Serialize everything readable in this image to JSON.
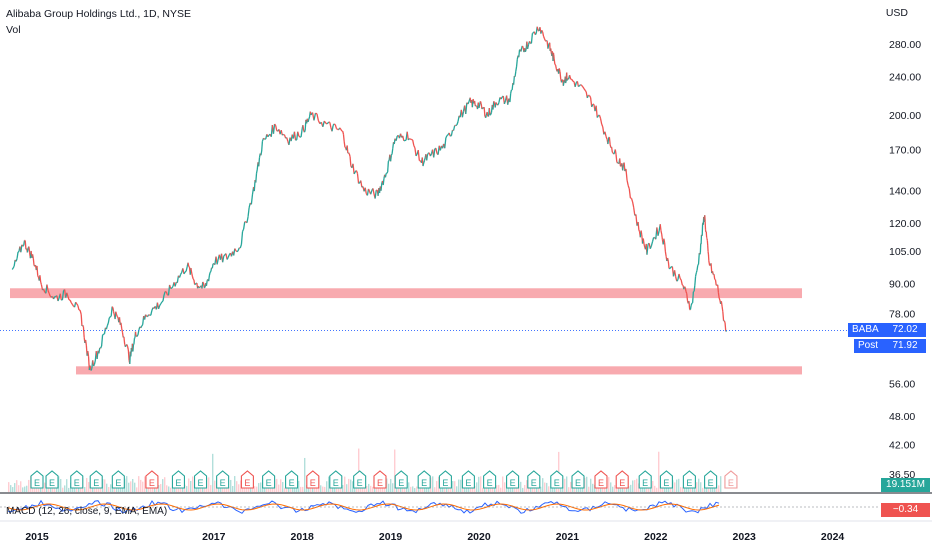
{
  "header": {
    "title": "Alibaba Group Holdings Ltd., 1D, NYSE",
    "volume_label": "Vol",
    "currency": "USD",
    "macd_label": "MACD (12, 26, close, 9, EMA, EMA)"
  },
  "tags": {
    "symbol": "BABA",
    "price": "72.02",
    "post_label": "Post",
    "post_price": "71.92",
    "volume": "19.151M",
    "macd_value": "−0.34"
  },
  "colors": {
    "up": "#26a69a",
    "down": "#ef5350",
    "zone": "#f7a1a6",
    "price_tag": "#2962ff",
    "macd_line": "#2962ff",
    "signal_line": "#ff6d00"
  },
  "chart_data": {
    "type": "line",
    "title": "Alibaba Group Holdings Ltd., 1D, NYSE",
    "ylim": [
      34,
      320
    ],
    "y_scale": "log",
    "y_ticks": [
      "280.00",
      "240.00",
      "200.00",
      "170.00",
      "140.00",
      "120.00",
      "105.00",
      "90.00",
      "78.00",
      "56.00",
      "48.00",
      "42.00",
      "36.50"
    ],
    "x_ticks": [
      "2015",
      "2016",
      "2017",
      "2018",
      "2019",
      "2020",
      "2021",
      "2022",
      "2023",
      "2024"
    ],
    "series": [
      {
        "name": "BABA",
        "x": [
          2014.72,
          2014.85,
          2014.95,
          2015.05,
          2015.2,
          2015.35,
          2015.5,
          2015.6,
          2015.72,
          2015.85,
          2015.95,
          2016.05,
          2016.12,
          2016.25,
          2016.4,
          2016.55,
          2016.7,
          2016.8,
          2016.9,
          2017.0,
          2017.15,
          2017.3,
          2017.45,
          2017.55,
          2017.7,
          2017.85,
          2018.0,
          2018.1,
          2018.3,
          2018.45,
          2018.55,
          2018.7,
          2018.85,
          2018.95,
          2019.05,
          2019.2,
          2019.35,
          2019.45,
          2019.6,
          2019.75,
          2019.9,
          2020.0,
          2020.1,
          2020.2,
          2020.35,
          2020.45,
          2020.55,
          2020.68,
          2020.8,
          2020.85,
          2020.95,
          2021.0,
          2021.15,
          2021.3,
          2021.45,
          2021.55,
          2021.65,
          2021.8,
          2021.9,
          2022.05,
          2022.15,
          2022.3,
          2022.4,
          2022.5,
          2022.55,
          2022.6,
          2022.7,
          2022.8
        ],
        "values": [
          95,
          110,
          102,
          90,
          84,
          86,
          77,
          60,
          67,
          80,
          74,
          63,
          71,
          78,
          82,
          90,
          98,
          90,
          88,
          100,
          102,
          108,
          140,
          175,
          190,
          178,
          185,
          200,
          190,
          185,
          160,
          140,
          137,
          152,
          178,
          182,
          160,
          165,
          172,
          195,
          212,
          210,
          200,
          214,
          215,
          265,
          280,
          305,
          275,
          260,
          235,
          240,
          228,
          210,
          180,
          165,
          155,
          118,
          105,
          118,
          98,
          90,
          80,
          105,
          125,
          100,
          88,
          72
        ]
      }
    ],
    "zones": [
      {
        "from": 84,
        "to": 88
      },
      {
        "from": 58.5,
        "to": 60.8
      }
    ],
    "earnings_markers": [
      {
        "year": 2015.0,
        "type": "up"
      },
      {
        "year": 2015.17,
        "type": "up"
      },
      {
        "year": 2015.45,
        "type": "up"
      },
      {
        "year": 2015.67,
        "type": "up"
      },
      {
        "year": 2015.92,
        "type": "up"
      },
      {
        "year": 2016.3,
        "type": "down"
      },
      {
        "year": 2016.6,
        "type": "up"
      },
      {
        "year": 2016.85,
        "type": "up"
      },
      {
        "year": 2017.1,
        "type": "up"
      },
      {
        "year": 2017.38,
        "type": "down"
      },
      {
        "year": 2017.62,
        "type": "up"
      },
      {
        "year": 2017.88,
        "type": "up"
      },
      {
        "year": 2018.12,
        "type": "down"
      },
      {
        "year": 2018.38,
        "type": "up"
      },
      {
        "year": 2018.65,
        "type": "up"
      },
      {
        "year": 2018.88,
        "type": "down"
      },
      {
        "year": 2019.12,
        "type": "up"
      },
      {
        "year": 2019.38,
        "type": "up"
      },
      {
        "year": 2019.62,
        "type": "up"
      },
      {
        "year": 2019.88,
        "type": "up"
      },
      {
        "year": 2020.12,
        "type": "up"
      },
      {
        "year": 2020.38,
        "type": "up"
      },
      {
        "year": 2020.62,
        "type": "up"
      },
      {
        "year": 2020.88,
        "type": "up"
      },
      {
        "year": 2021.12,
        "type": "up"
      },
      {
        "year": 2021.38,
        "type": "down"
      },
      {
        "year": 2021.62,
        "type": "down"
      },
      {
        "year": 2021.88,
        "type": "up"
      },
      {
        "year": 2022.12,
        "type": "up"
      },
      {
        "year": 2022.38,
        "type": "up"
      },
      {
        "year": 2022.62,
        "type": "up"
      },
      {
        "year": 2022.85,
        "type": "upcoming"
      }
    ]
  }
}
